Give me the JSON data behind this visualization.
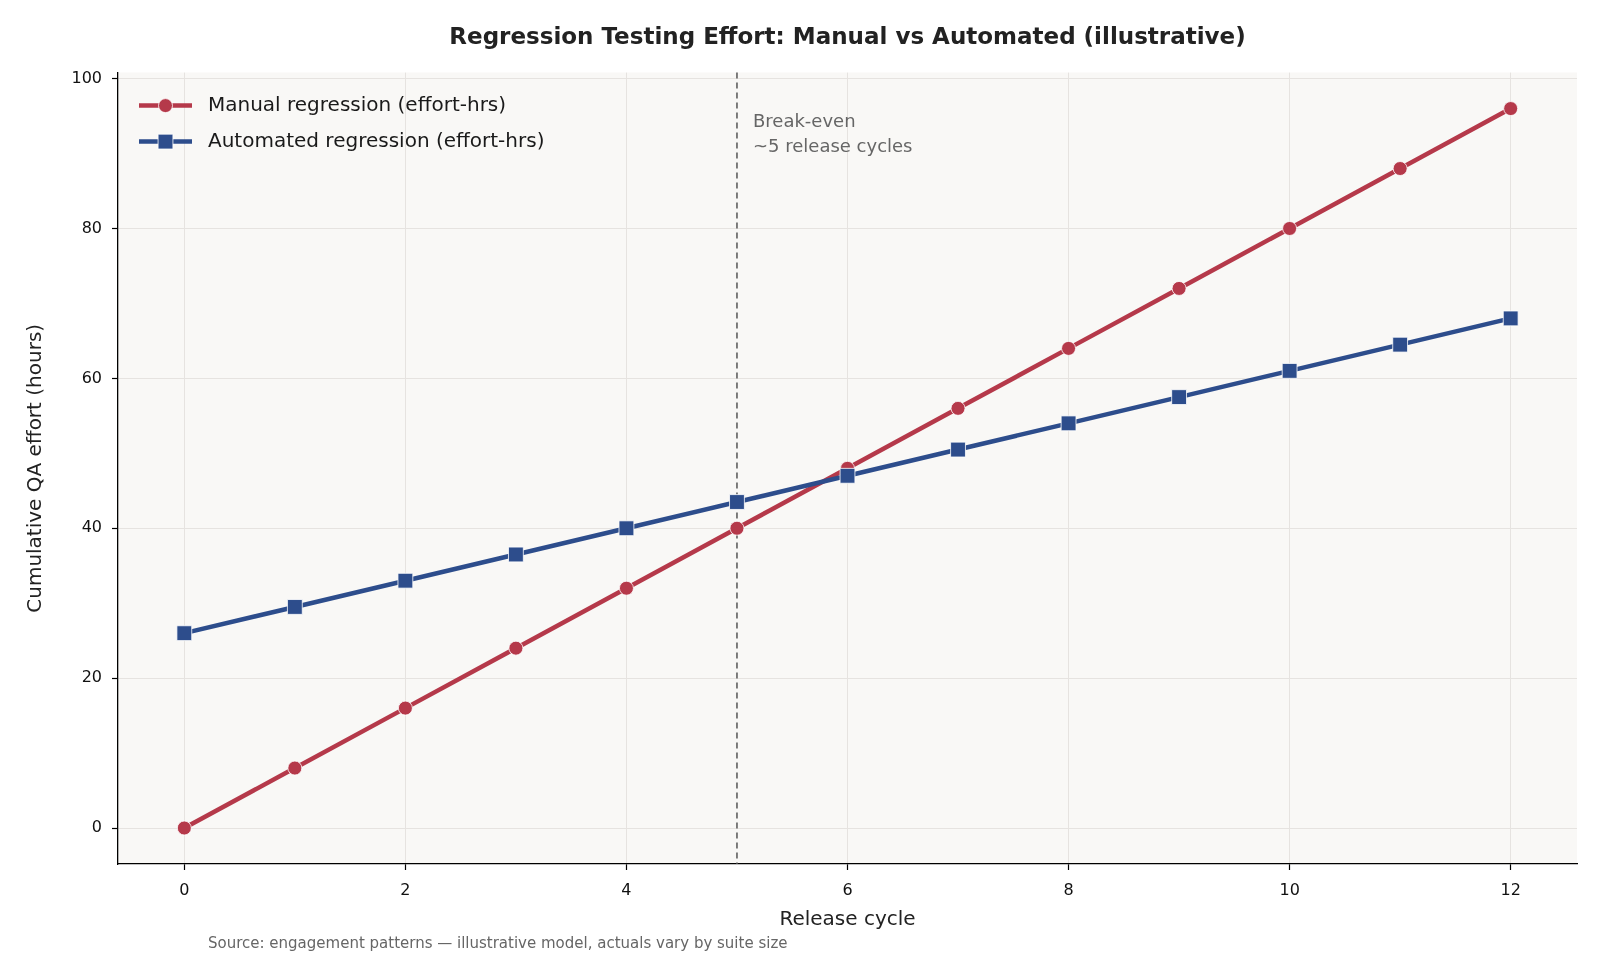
{
  "chart_data": {
    "type": "line",
    "title": "Regression Testing Effort: Manual vs Automated (illustrative)",
    "xlabel": "Release cycle",
    "ylabel": "Cumulative QA effort (hours)",
    "x": [
      0,
      1,
      2,
      3,
      4,
      5,
      6,
      7,
      8,
      9,
      10,
      11,
      12
    ],
    "series": [
      {
        "name": "Manual regression (effort-hrs)",
        "color": "#b5394a",
        "marker": "circle",
        "values": [
          0,
          8,
          16,
          24,
          32,
          40,
          48,
          56,
          64,
          72,
          80,
          88,
          96
        ]
      },
      {
        "name": "Automated regression (effort-hrs)",
        "color": "#2d4d8c",
        "marker": "square",
        "values": [
          26,
          29.5,
          33,
          36.5,
          40,
          43.5,
          47,
          50.5,
          54,
          57.5,
          61,
          64.5,
          68
        ]
      }
    ],
    "xlim": [
      -0.6,
      12.6
    ],
    "xticks": [
      0,
      2,
      4,
      6,
      8,
      10,
      12
    ],
    "ylim": [
      -4.8,
      100.8
    ],
    "yticks": [
      0,
      20,
      40,
      60,
      80,
      100
    ],
    "grid": true,
    "legend": "top left",
    "ref_lines": [
      {
        "axis": "x",
        "value": 5,
        "label": "Break-even\n~5 release cycles",
        "color": "#555555",
        "line_style": "dashed"
      }
    ],
    "annotations": [
      "Source: engagement patterns — illustrative model, actuals vary by suite size"
    ]
  }
}
